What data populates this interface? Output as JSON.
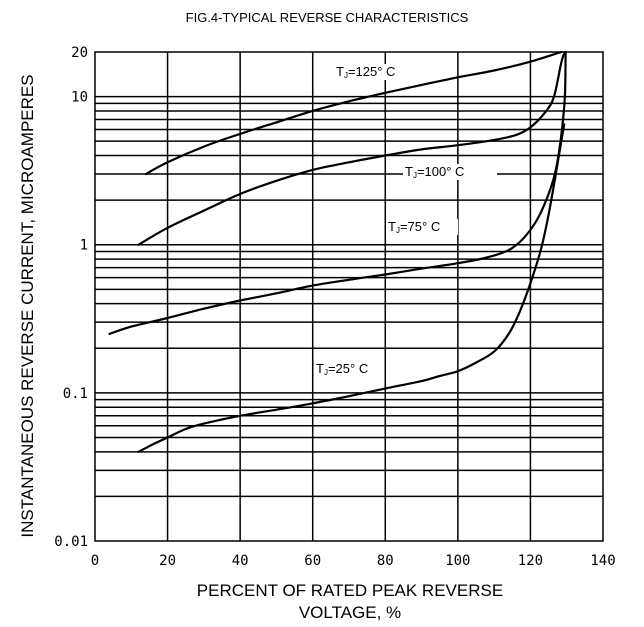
{
  "chart_data": {
    "type": "line",
    "title": "FIG.4-TYPICAL REVERSE CHARACTERISTICS",
    "xlabel_line1": "PERCENT OF RATED PEAK REVERSE",
    "xlabel_line2": "VOLTAGE, %",
    "ylabel": "INSTANTANEOUS REVERSE CURRENT, MICROAMPERES",
    "xlim": [
      0,
      140
    ],
    "ylim": [
      0.01,
      20
    ],
    "yscale": "log",
    "grid": true,
    "x_ticks": [
      "0",
      "20",
      "40",
      "60",
      "80",
      "100",
      "120",
      "140"
    ],
    "y_ticks": [
      {
        "value": 20,
        "label": "20"
      },
      {
        "value": 10,
        "label": "10"
      },
      {
        "value": 1,
        "label": "1"
      },
      {
        "value": 0.1,
        "label": "0.1"
      },
      {
        "value": 0.01,
        "label": "0.01"
      }
    ],
    "series": [
      {
        "name": "TJ=125° C",
        "label_main": "T",
        "label_sub": "J",
        "label_rest": "=125° C",
        "x": [
          14,
          20,
          30,
          40,
          50,
          60,
          70,
          80,
          90,
          100,
          110,
          120,
          128.5
        ],
        "y": [
          3.0,
          3.6,
          4.6,
          5.6,
          6.7,
          8.0,
          9.3,
          10.6,
          12.0,
          13.5,
          15.0,
          17.2,
          20
        ]
      },
      {
        "name": "TJ=100° C",
        "label_main": "T",
        "label_sub": "J",
        "label_rest": "=100° C",
        "x": [
          12,
          20,
          30,
          40,
          50,
          60,
          70,
          80,
          90,
          100,
          110,
          116,
          120,
          124,
          126.5,
          128.5,
          129.5
        ],
        "y": [
          1.0,
          1.3,
          1.7,
          2.2,
          2.7,
          3.2,
          3.6,
          4.0,
          4.4,
          4.7,
          5.1,
          5.5,
          6.2,
          7.8,
          10,
          17,
          20
        ]
      },
      {
        "name": "TJ=75° C",
        "label_main": "T",
        "label_sub": "J",
        "label_rest": "=75° C",
        "x": [
          4,
          10,
          20,
          30,
          40,
          50,
          60,
          70,
          80,
          90,
          100,
          108,
          114,
          118,
          122,
          125,
          127,
          128.5,
          129.5,
          129.7
        ],
        "y": [
          0.25,
          0.28,
          0.32,
          0.37,
          0.42,
          0.47,
          0.53,
          0.58,
          0.63,
          0.69,
          0.75,
          0.82,
          0.92,
          1.1,
          1.5,
          2.2,
          3.2,
          5.5,
          10,
          20
        ]
      },
      {
        "name": "TJ=25° C",
        "label_main": "T",
        "label_sub": "J",
        "label_rest": "=25° C",
        "x": [
          12,
          16,
          20,
          25,
          30,
          40,
          50,
          60,
          70,
          80,
          90,
          95,
          100,
          105,
          110,
          114,
          117,
          120,
          123,
          125,
          127,
          128.5,
          129.3
        ],
        "y": [
          0.04,
          0.045,
          0.05,
          0.057,
          0.062,
          0.07,
          0.077,
          0.085,
          0.095,
          0.107,
          0.12,
          0.13,
          0.14,
          0.16,
          0.19,
          0.25,
          0.35,
          0.55,
          0.95,
          1.6,
          3.0,
          5.0,
          6.5
        ]
      }
    ]
  }
}
